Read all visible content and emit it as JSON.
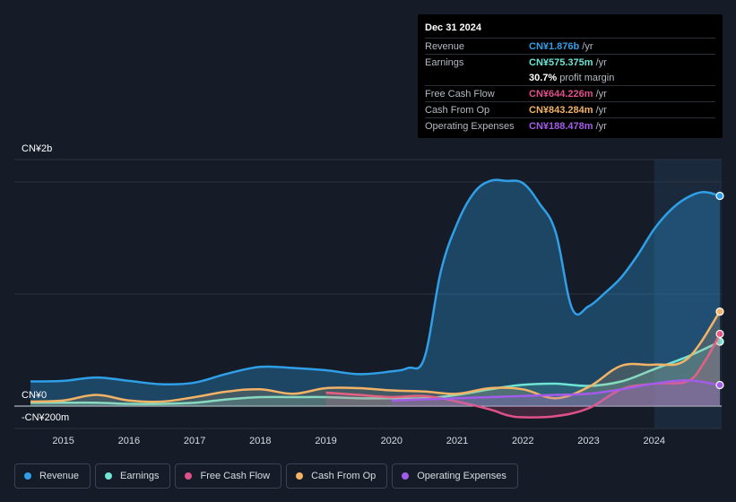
{
  "tooltip": {
    "date": "Dec 31 2024",
    "rows": [
      {
        "label": "Revenue",
        "value": "CN¥1.876b",
        "unit": "/yr",
        "color": "#2f9fe8"
      },
      {
        "label": "Earnings",
        "value": "CN¥575.375m",
        "unit": "/yr",
        "color": "#6fe3d4"
      },
      {
        "label": "",
        "value": "30.7%",
        "unit": "profit margin",
        "color": "#ffffff"
      },
      {
        "label": "Free Cash Flow",
        "value": "CN¥644.226m",
        "unit": "/yr",
        "color": "#e0518a"
      },
      {
        "label": "Cash From Op",
        "value": "CN¥843.284m",
        "unit": "/yr",
        "color": "#f2b366"
      },
      {
        "label": "Operating Expenses",
        "value": "CN¥188.478m",
        "unit": "/yr",
        "color": "#a35ce8"
      }
    ]
  },
  "chart_data": {
    "type": "area",
    "ylabel_top": "CN¥2b",
    "ylabel_zero": "CN¥0",
    "ylabel_bottom": "-CN¥200m",
    "ylim": [
      -200,
      2200
    ],
    "x_ticks": [
      "2015",
      "2016",
      "2017",
      "2018",
      "2019",
      "2020",
      "2021",
      "2022",
      "2023",
      "2024"
    ],
    "highlight_from": 2024.0,
    "series": [
      {
        "name": "Revenue",
        "color": "#2f9fe8",
        "x": [
          2014.5,
          2015.0,
          2015.5,
          2016.0,
          2016.5,
          2017.0,
          2017.5,
          2018.0,
          2018.5,
          2019.0,
          2019.5,
          2020.0,
          2020.25,
          2020.5,
          2020.75,
          2021.0,
          2021.25,
          2021.5,
          2021.75,
          2022.0,
          2022.25,
          2022.5,
          2022.75,
          2023.0,
          2023.25,
          2023.5,
          2023.75,
          2024.0,
          2024.25,
          2024.5,
          2024.75,
          2025.0
        ],
        "values": [
          220,
          225,
          255,
          225,
          195,
          210,
          290,
          350,
          340,
          320,
          285,
          310,
          340,
          430,
          1200,
          1630,
          1900,
          2010,
          2010,
          1990,
          1810,
          1550,
          870,
          890,
          1010,
          1150,
          1350,
          1580,
          1750,
          1860,
          1910,
          1876
        ]
      },
      {
        "name": "Earnings",
        "color": "#6fe3d4",
        "x": [
          2014.5,
          2015.0,
          2015.5,
          2016.0,
          2016.5,
          2017.0,
          2017.5,
          2018.0,
          2018.5,
          2019.0,
          2019.5,
          2020.0,
          2020.5,
          2021.0,
          2021.5,
          2022.0,
          2022.5,
          2023.0,
          2023.5,
          2024.0,
          2024.5,
          2025.0
        ],
        "values": [
          30,
          30,
          30,
          20,
          20,
          30,
          60,
          80,
          80,
          80,
          70,
          70,
          70,
          100,
          150,
          190,
          200,
          180,
          220,
          330,
          440,
          575
        ]
      },
      {
        "name": "Free Cash Flow",
        "color": "#e0518a",
        "x": [
          2019.0,
          2019.5,
          2020.0,
          2020.5,
          2021.0,
          2021.5,
          2021.75,
          2022.0,
          2022.5,
          2023.0,
          2023.5,
          2024.0,
          2024.5,
          2024.75,
          2025.0
        ],
        "values": [
          120,
          100,
          80,
          90,
          40,
          -30,
          -80,
          -100,
          -90,
          -20,
          150,
          200,
          220,
          380,
          644
        ]
      },
      {
        "name": "Cash From Op",
        "color": "#f2b366",
        "x": [
          2014.5,
          2015.0,
          2015.5,
          2016.0,
          2016.5,
          2017.0,
          2017.5,
          2018.0,
          2018.5,
          2019.0,
          2019.5,
          2020.0,
          2020.5,
          2021.0,
          2021.5,
          2022.0,
          2022.5,
          2023.0,
          2023.5,
          2024.0,
          2024.5,
          2025.0
        ],
        "values": [
          40,
          50,
          100,
          50,
          40,
          80,
          130,
          150,
          110,
          160,
          160,
          140,
          130,
          110,
          160,
          150,
          70,
          170,
          360,
          370,
          420,
          843
        ]
      },
      {
        "name": "Operating Expenses",
        "color": "#a35ce8",
        "x": [
          2020.0,
          2020.5,
          2021.0,
          2021.5,
          2022.0,
          2022.5,
          2023.0,
          2023.5,
          2024.0,
          2024.5,
          2025.0
        ],
        "values": [
          50,
          60,
          70,
          80,
          90,
          100,
          110,
          150,
          200,
          230,
          188
        ]
      }
    ]
  },
  "legend": [
    {
      "label": "Revenue",
      "color": "#2f9fe8"
    },
    {
      "label": "Earnings",
      "color": "#6fe3d4"
    },
    {
      "label": "Free Cash Flow",
      "color": "#e0518a"
    },
    {
      "label": "Cash From Op",
      "color": "#f2b366"
    },
    {
      "label": "Operating Expenses",
      "color": "#a35ce8"
    }
  ]
}
